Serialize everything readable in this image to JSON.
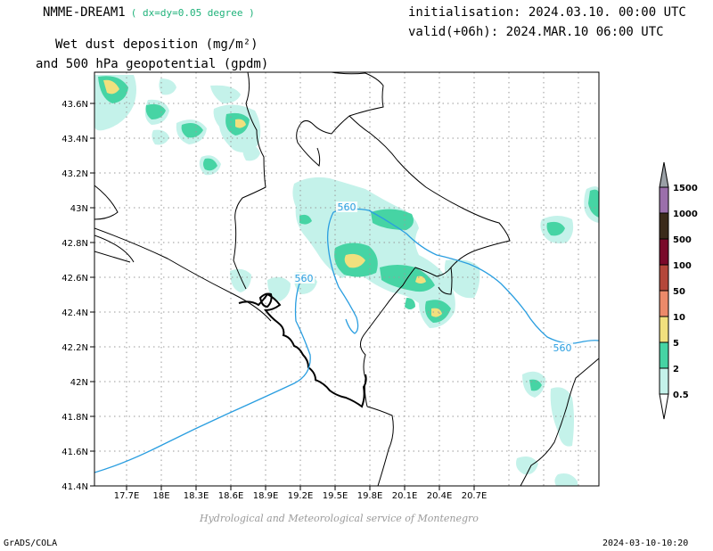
{
  "header": {
    "model": "NMME-DREAM1",
    "resolution": "( dx=dy=0.05 degree )",
    "variable_line1": "Wet dust deposition (mg/m²)",
    "variable_line2": "and 500 hPa geopotential (gpdm)",
    "init": "initialisation: 2024.03.10. 00:00 UTC",
    "valid": "valid(+06h): 2024.MAR.10 06:00 UTC"
  },
  "map": {
    "lon_ticks": [
      "17.7E",
      "18E",
      "18.3E",
      "18.6E",
      "18.9E",
      "19.2E",
      "19.5E",
      "19.8E",
      "20.1E",
      "20.4E",
      "20.7E"
    ],
    "lat_ticks": [
      "41.4N",
      "41.6N",
      "41.8N",
      "42N",
      "42.2N",
      "42.4N",
      "42.6N",
      "42.8N",
      "43N",
      "43.2N",
      "43.4N",
      "43.6N"
    ],
    "contour_labels": [
      "560",
      "560",
      "560"
    ],
    "contour_color": "#2a9ee0"
  },
  "legend": {
    "labels": [
      "1500",
      "1000",
      "500",
      "100",
      "50",
      "10",
      "5",
      "2",
      "0.5"
    ],
    "colors": [
      "#9aa0a6",
      "#9b6fab",
      "#3b2a1a",
      "#7a0a2a",
      "#b4473a",
      "#ec8a6a",
      "#f1e07e",
      "#46d4a4",
      "#c4f2ea"
    ]
  },
  "footer": {
    "credit": "Hydrological and Meteorological service of Montenegro",
    "left": "GrADS/COLA",
    "right": "2024-03-10-10:20"
  }
}
